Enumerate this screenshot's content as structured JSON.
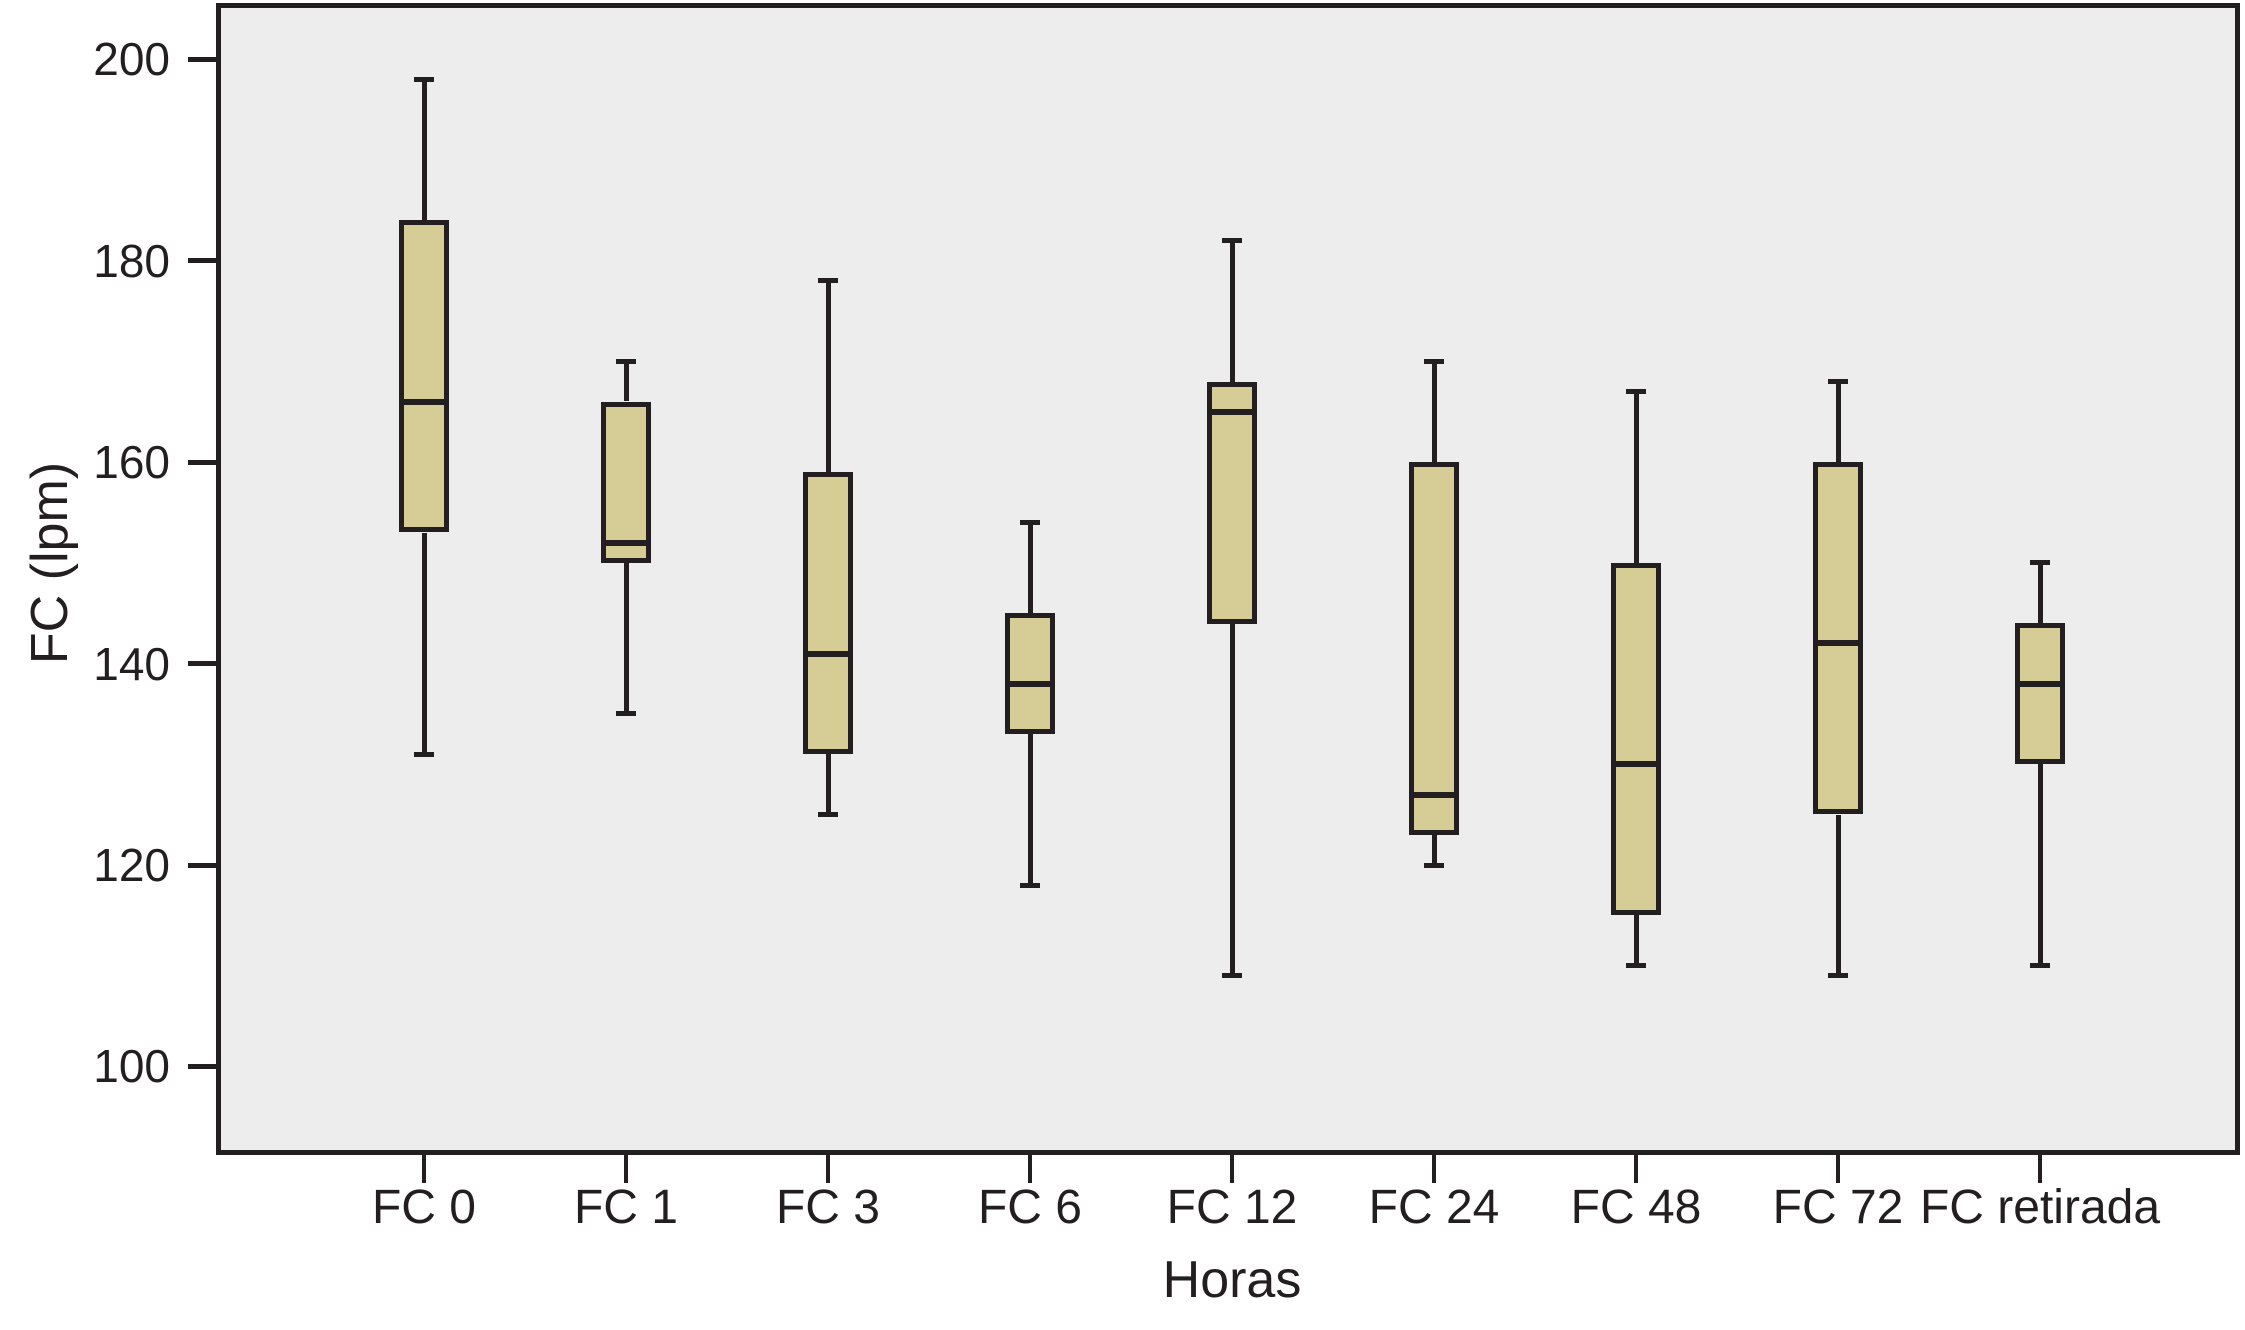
{
  "figure": {
    "background": "#ffffff",
    "plot_background": "#ededed",
    "line_color": "#231f20",
    "box_fill": "#d5cc96",
    "text_color": "#231f20"
  },
  "chart_data": {
    "type": "boxplot",
    "xlabel": "Horas",
    "ylabel": "FC (lpm)",
    "categories": [
      "FC 0",
      "FC 1",
      "FC 3",
      "FC 6",
      "FC 12",
      "FC 24",
      "FC 48",
      "FC 72",
      "FC retirada"
    ],
    "y_ticks": [
      200,
      180,
      160,
      140,
      120,
      100
    ],
    "ylim": [
      91.7,
      205.1
    ],
    "grid": false,
    "legend": "none",
    "boxes": [
      {
        "category": "FC 0",
        "min": 131,
        "q1": 153,
        "median": 166,
        "q3": 184,
        "max": 198
      },
      {
        "category": "FC 1",
        "min": 135,
        "q1": 150,
        "median": 152,
        "q3": 166,
        "max": 170
      },
      {
        "category": "FC 3",
        "min": 125,
        "q1": 131,
        "median": 141,
        "q3": 159,
        "max": 178
      },
      {
        "category": "FC 6",
        "min": 118,
        "q1": 133,
        "median": 138,
        "q3": 145,
        "max": 154
      },
      {
        "category": "FC 12",
        "min": 109,
        "q1": 144,
        "median": 165,
        "q3": 168,
        "max": 182
      },
      {
        "category": "FC 24",
        "min": 120,
        "q1": 123,
        "median": 127,
        "q3": 160,
        "max": 170
      },
      {
        "category": "FC 48",
        "min": 110,
        "q1": 115,
        "median": 130,
        "q3": 150,
        "max": 167
      },
      {
        "category": "FC 72",
        "min": 109,
        "q1": 125,
        "median": 142,
        "q3": 160,
        "max": 168
      },
      {
        "category": "FC retirada",
        "min": 110,
        "q1": 130,
        "median": 138,
        "q3": 144,
        "max": 150
      }
    ]
  }
}
